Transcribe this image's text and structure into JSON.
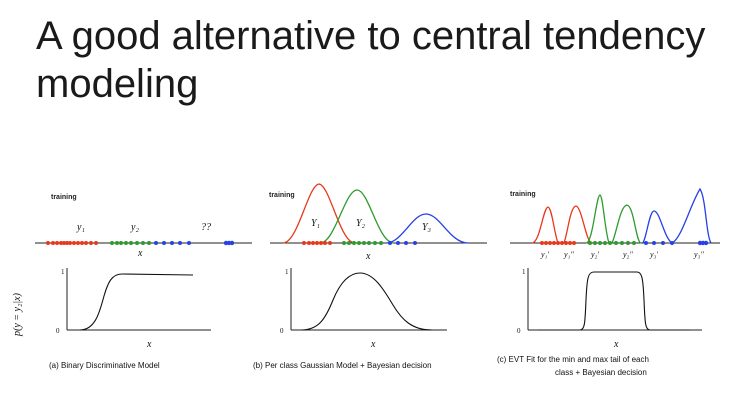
{
  "title": "A good alternative to central tendency modeling",
  "colors": {
    "red": "#e8381c",
    "green": "#2e9b2e",
    "blue": "#2541e8",
    "axis": "#222222"
  },
  "ylabel": "p(y = y₂|x)",
  "panels": [
    {
      "training_label": "training",
      "axis_label": "x",
      "bottom_axis_label": "x",
      "ticks": [
        "1",
        "0"
      ],
      "class_labels": [
        "y₁",
        "y₂",
        "??"
      ],
      "caption_lines": [
        "(a) Binary Discriminative Model"
      ]
    },
    {
      "training_label": "training",
      "axis_label": "x",
      "bottom_axis_label": "x",
      "ticks": [
        "1",
        "0"
      ],
      "class_labels": [
        "Y₁",
        "Y₂",
        "Y₃"
      ],
      "caption_lines": [
        "(b) Per class Gaussian Model + Bayesian decision"
      ]
    },
    {
      "training_label": "training",
      "bottom_axis_label": "x",
      "ticks": [
        "1",
        "0"
      ],
      "class_labels": [
        "y₁'",
        "y₁\"",
        "y₂'",
        "y₂\"",
        "y₃'",
        "y₃\""
      ],
      "caption_lines": [
        "(c) EVT Fit for the min and max tail of each",
        "class + Bayesian decision"
      ]
    }
  ]
}
